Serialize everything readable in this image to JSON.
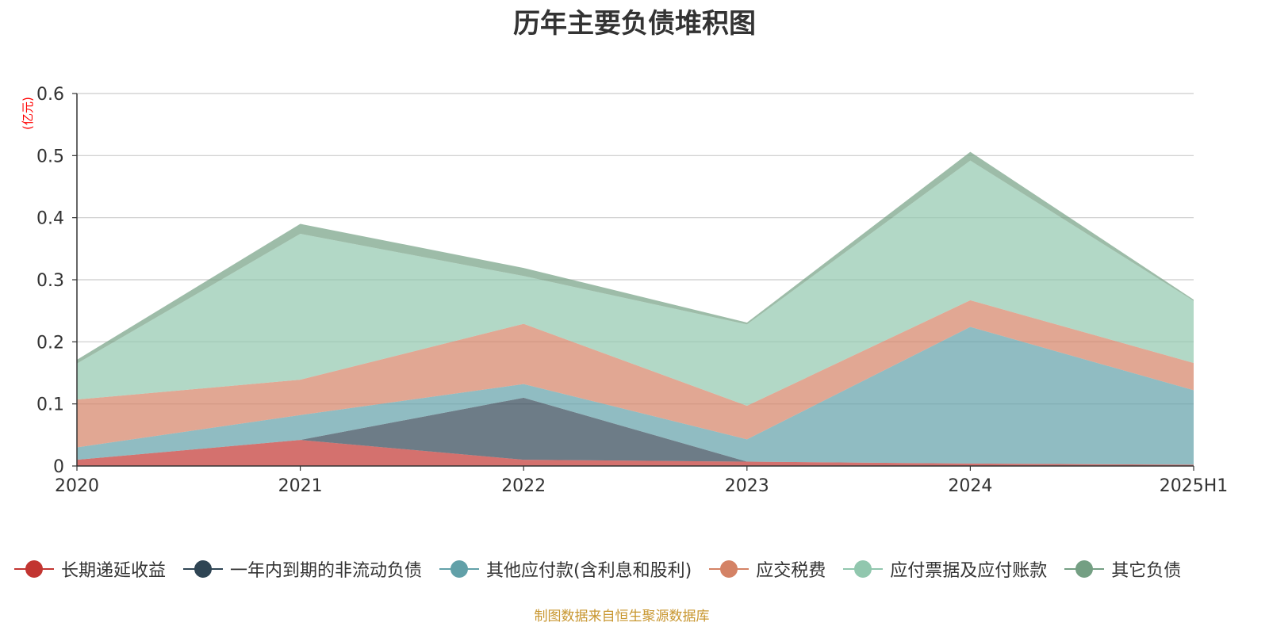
{
  "chart_data": {
    "type": "area",
    "stacked": true,
    "title": "历年主要负债堆积图",
    "ylabel": "(亿元)",
    "xlabel": "",
    "categories": [
      "2020",
      "2021",
      "2022",
      "2023",
      "2024",
      "2025H1"
    ],
    "ylim": [
      0,
      0.6
    ],
    "yticks": [
      "0",
      "0.1",
      "0.2",
      "0.3",
      "0.4",
      "0.5",
      "0.6"
    ],
    "grid": true,
    "legend_position": "bottom",
    "series": [
      {
        "name": "长期递延收益",
        "color": "#c23531",
        "values": [
          0.01,
          0.042,
          0.01,
          0.007,
          0.004,
          0.002
        ]
      },
      {
        "name": "一年内到期的非流动负债",
        "color": "#2f4554",
        "values": [
          0,
          0,
          0.1,
          0,
          0,
          0
        ]
      },
      {
        "name": "其他应付款(含利息和股利)",
        "color": "#61a0a8",
        "values": [
          0.02,
          0.04,
          0.022,
          0.036,
          0.22,
          0.12
        ]
      },
      {
        "name": "应交税费",
        "color": "#d48265",
        "values": [
          0.077,
          0.057,
          0.097,
          0.054,
          0.043,
          0.044
        ]
      },
      {
        "name": "应付票据及应付账款",
        "color": "#91c7ae",
        "values": [
          0.058,
          0.235,
          0.077,
          0.131,
          0.225,
          0.1
        ]
      },
      {
        "name": "其它负债",
        "color": "#749f83",
        "values": [
          0.006,
          0.016,
          0.013,
          0.003,
          0.014,
          0.002
        ]
      }
    ]
  },
  "footer": {
    "source": "制图数据来自恒生聚源数据库"
  }
}
